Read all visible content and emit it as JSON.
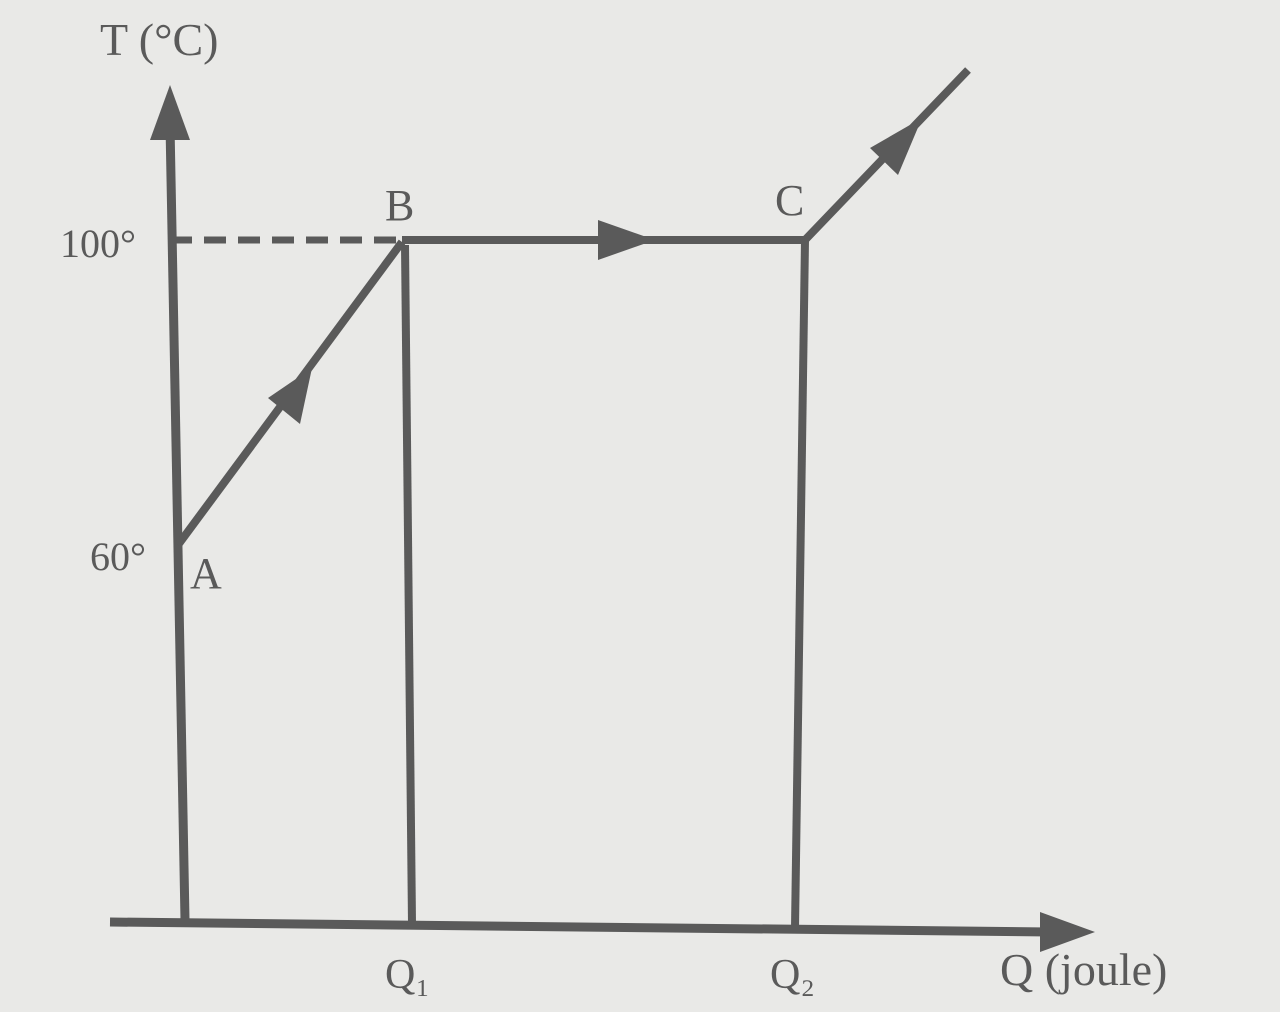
{
  "chart_data": {
    "type": "line",
    "ylabel": "T (°C)",
    "xlabel": "Q (joule)",
    "y_ticks": [
      "100°",
      "60°"
    ],
    "x_ticks": [
      "Q₁",
      "Q₂"
    ],
    "points": [
      {
        "label": "A",
        "x": 0,
        "y": 60
      },
      {
        "label": "B",
        "x": "Q₁",
        "y": 100
      },
      {
        "label": "C",
        "x": "Q₂",
        "y": 100
      }
    ],
    "colors": {
      "ink": "#5a5a5a",
      "background": "#e9e9e7"
    }
  }
}
